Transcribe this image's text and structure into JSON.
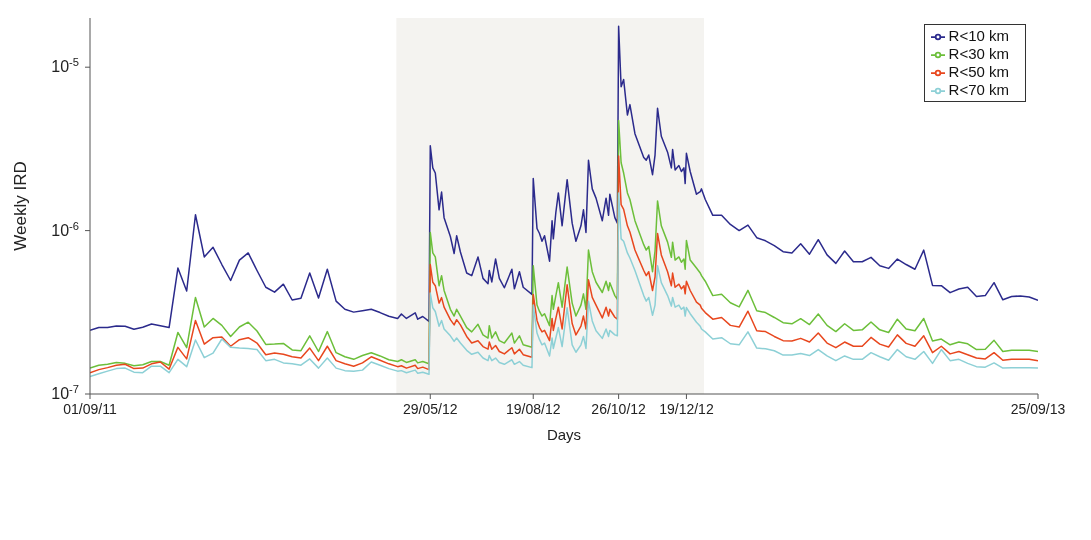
{
  "chart_data": {
    "type": "line",
    "xlabel": "Days",
    "ylabel": "Weekly IRD",
    "log": "y",
    "legend": "top right",
    "xlim": [
      "2011-09-01",
      "2013-09-25"
    ],
    "xticks": [
      {
        "value": "2011-09-01",
        "label": "01/09/11"
      },
      {
        "value": "2012-05-29",
        "label": "29/05/12"
      },
      {
        "value": "2012-08-19",
        "label": "19/08/12"
      },
      {
        "value": "2012-10-26",
        "label": "26/10/12"
      },
      {
        "value": "2012-12-19",
        "label": "19/12/12"
      },
      {
        "value": "2013-09-25",
        "label": "25/09/13"
      }
    ],
    "ylim": [
      1e-07,
      2e-05
    ],
    "yticks": [
      {
        "value": 1e-07,
        "label": "10$^{-7}$"
      },
      {
        "value": 1e-06,
        "label": "10$^{-6}$"
      },
      {
        "value": 1e-05,
        "label": "10$^{-5}$"
      }
    ],
    "bands": [
      {
        "axis": "x",
        "from": "2012-05-02",
        "to": "2013-01-02",
        "color": "#f4f3f0"
      }
    ],
    "x": [
      "2011-09-01",
      "2011-09-08",
      "2011-09-15",
      "2011-09-22",
      "2011-09-29",
      "2011-10-06",
      "2011-10-13",
      "2011-10-20",
      "2011-10-27",
      "2011-11-03",
      "2011-11-10",
      "2011-11-17",
      "2011-11-24",
      "2011-12-01",
      "2011-12-08",
      "2011-12-15",
      "2011-12-22",
      "2011-12-29",
      "2012-01-05",
      "2012-01-12",
      "2012-01-19",
      "2012-01-26",
      "2012-02-02",
      "2012-02-09",
      "2012-02-16",
      "2012-02-23",
      "2012-03-01",
      "2012-03-08",
      "2012-03-15",
      "2012-03-22",
      "2012-03-29",
      "2012-04-05",
      "2012-04-12",
      "2012-04-19",
      "2012-04-26",
      "2012-05-03",
      "2012-05-06",
      "2012-05-10",
      "2012-05-17",
      "2012-05-19",
      "2012-05-23",
      "2012-05-28",
      "2012-05-29",
      "2012-05-31",
      "2012-06-02",
      "2012-06-05",
      "2012-06-07",
      "2012-06-09",
      "2012-06-14",
      "2012-06-17",
      "2012-06-19",
      "2012-06-22",
      "2012-06-27",
      "2012-07-01",
      "2012-07-06",
      "2012-07-10",
      "2012-07-14",
      "2012-07-15",
      "2012-07-17",
      "2012-07-20",
      "2012-07-23",
      "2012-07-27",
      "2012-08-02",
      "2012-08-04",
      "2012-08-08",
      "2012-08-11",
      "2012-08-18",
      "2012-08-19",
      "2012-08-22",
      "2012-08-24",
      "2012-08-26",
      "2012-08-28",
      "2012-09-01",
      "2012-09-03",
      "2012-09-04",
      "2012-09-06",
      "2012-09-08",
      "2012-09-11",
      "2012-09-15",
      "2012-09-19",
      "2012-09-22",
      "2012-09-26",
      "2012-09-28",
      "2012-09-30",
      "2012-10-02",
      "2012-10-05",
      "2012-10-08",
      "2012-10-13",
      "2012-10-16",
      "2012-10-18",
      "2012-10-19",
      "2012-10-23",
      "2012-10-25",
      "2012-10-26",
      "2012-10-28",
      "2012-10-30",
      "2012-11-02",
      "2012-11-04",
      "2012-11-08",
      "2012-11-15",
      "2012-11-17",
      "2012-11-19",
      "2012-11-22",
      "2012-11-24",
      "2012-11-26",
      "2012-11-29",
      "2012-12-04",
      "2012-12-07",
      "2012-12-08",
      "2012-12-10",
      "2012-12-13",
      "2012-12-15",
      "2012-12-17",
      "2012-12-18",
      "2012-12-19",
      "2012-12-22",
      "2012-12-27",
      "2012-12-30",
      "2012-12-31",
      "2013-01-03",
      "2013-01-09",
      "2013-01-16",
      "2013-01-23",
      "2013-01-30",
      "2013-02-06",
      "2013-02-13",
      "2013-02-20",
      "2013-02-27",
      "2013-03-06",
      "2013-03-13",
      "2013-03-20",
      "2013-03-27",
      "2013-04-03",
      "2013-04-10",
      "2013-04-17",
      "2013-04-24",
      "2013-05-01",
      "2013-05-08",
      "2013-05-15",
      "2013-05-22",
      "2013-05-29",
      "2013-06-05",
      "2013-06-12",
      "2013-06-19",
      "2013-06-26",
      "2013-07-03",
      "2013-07-10",
      "2013-07-17",
      "2013-07-24",
      "2013-07-31",
      "2013-08-07",
      "2013-08-14",
      "2013-08-21",
      "2013-08-28",
      "2013-09-04",
      "2013-09-11",
      "2013-09-18",
      "2013-09-25"
    ],
    "series": [
      {
        "name": "R<10 km",
        "color": "#2b2a8c",
        "values": [
          2.45e-07,
          2.55e-07,
          2.55e-07,
          2.61e-07,
          2.6e-07,
          2.49e-07,
          2.56e-07,
          2.68e-07,
          2.62e-07,
          2.55e-07,
          5.9e-07,
          4.27e-07,
          1.25e-06,
          6.9e-07,
          7.9e-07,
          6.2e-07,
          4.95e-07,
          6.6e-07,
          7.3e-07,
          5.7e-07,
          4.5e-07,
          4.2e-07,
          4.7e-07,
          3.76e-07,
          3.85e-07,
          5.5e-07,
          3.87e-07,
          5.8e-07,
          3.7e-07,
          3.3e-07,
          3.17e-07,
          3.23e-07,
          3.3e-07,
          3.15e-07,
          2.99e-07,
          2.9e-07,
          3.09e-07,
          2.9e-07,
          3.14e-07,
          2.87e-07,
          2.98e-07,
          2.78e-07,
          3.3e-06,
          2.42e-06,
          2.25e-06,
          1.34e-06,
          1.72e-06,
          1.2e-06,
          9.2e-07,
          7.24e-07,
          9.3e-07,
          7.4e-07,
          5.5e-07,
          5.3e-07,
          6.9e-07,
          5.1e-07,
          4.73e-07,
          5.7e-07,
          4.85e-07,
          6.7e-07,
          5.1e-07,
          4.47e-07,
          5.8e-07,
          4.4e-07,
          5.6e-07,
          4.5e-07,
          4.07e-07,
          2.08e-06,
          1.03e-06,
          9.6e-07,
          8.6e-07,
          9.3e-07,
          6.5e-07,
          1.15e-06,
          8.9e-07,
          1.29e-06,
          1.7e-06,
          1.07e-06,
          2.05e-06,
          1.11e-06,
          8.6e-07,
          1.07e-06,
          1.34e-06,
          9.75e-07,
          2.69e-06,
          1.8e-06,
          1.58e-06,
          1.15e-06,
          1.58e-06,
          1.24e-06,
          1.67e-06,
          1.2e-06,
          1.11e-06,
          1.78e-05,
          7.6e-06,
          8.4e-06,
          5.1e-06,
          5.9e-06,
          3.92e-06,
          2.8e-06,
          2.7e-06,
          2.9e-06,
          2.2e-06,
          2.9e-06,
          5.6e-06,
          3.78e-06,
          3.02e-06,
          2.42e-06,
          3.13e-06,
          2.35e-06,
          2.5e-06,
          2.3e-06,
          2.42e-06,
          1.94e-06,
          2.97e-06,
          2.3e-06,
          1.67e-06,
          1.73e-06,
          1.8e-06,
          1.55e-06,
          1.24e-06,
          1.24e-06,
          1.09e-06,
          1e-06,
          1.08e-06,
          9.05e-07,
          8.66e-07,
          8.1e-07,
          7.43e-07,
          7.3e-07,
          8.3e-07,
          7.17e-07,
          8.8e-07,
          7.1e-07,
          6.3e-07,
          7.5e-07,
          6.45e-07,
          6.45e-07,
          6.86e-07,
          6.1e-07,
          5.87e-07,
          6.7e-07,
          6.2e-07,
          5.8e-07,
          7.6e-07,
          4.62e-07,
          4.6e-07,
          4.17e-07,
          4.39e-07,
          4.5e-07,
          3.95e-07,
          4e-07,
          4.8e-07,
          3.77e-07,
          3.95e-07,
          3.98e-07,
          3.92e-07,
          3.74e-07
        ]
      },
      {
        "name": "R<30 km",
        "color": "#6cbf3a",
        "values": [
          1.44e-07,
          1.5e-07,
          1.52e-07,
          1.56e-07,
          1.54e-07,
          1.49e-07,
          1.51e-07,
          1.58e-07,
          1.58e-07,
          1.5e-07,
          2.38e-07,
          1.92e-07,
          3.9e-07,
          2.57e-07,
          2.9e-07,
          2.63e-07,
          2.25e-07,
          2.57e-07,
          2.75e-07,
          2.43e-07,
          2.01e-07,
          2.02e-07,
          2.04e-07,
          1.86e-07,
          1.84e-07,
          2.27e-07,
          1.82e-07,
          2.41e-07,
          1.79e-07,
          1.69e-07,
          1.63e-07,
          1.72e-07,
          1.79e-07,
          1.71e-07,
          1.62e-07,
          1.58e-07,
          1.62e-07,
          1.56e-07,
          1.62e-07,
          1.55e-07,
          1.58e-07,
          1.53e-07,
          9.75e-07,
          7.3e-07,
          6.9e-07,
          4.6e-07,
          5.3e-07,
          4.3e-07,
          3.3e-07,
          3e-07,
          3.3e-07,
          3e-07,
          2.55e-07,
          2.4e-07,
          2.67e-07,
          2.3e-07,
          2.2e-07,
          2.62e-07,
          2.2e-07,
          2.4e-07,
          2.12e-07,
          2.05e-07,
          2.36e-07,
          2.05e-07,
          2.27e-07,
          2e-07,
          1.93e-07,
          6.1e-07,
          3.5e-07,
          3.2e-07,
          3e-07,
          3.1e-07,
          2.62e-07,
          4e-07,
          3.3e-07,
          4e-07,
          4.8e-07,
          3.4e-07,
          5.98e-07,
          3.6e-07,
          3e-07,
          3.5e-07,
          4.1e-07,
          3.3e-07,
          7.6e-07,
          5.6e-07,
          4.83e-07,
          4.18e-07,
          4.9e-07,
          4.3e-07,
          4.8e-07,
          4e-07,
          3.8e-07,
          4.72e-06,
          2.6e-06,
          2.25e-06,
          1.7e-06,
          1.55e-06,
          1.15e-06,
          8.2e-07,
          7.6e-07,
          8e-07,
          5.6e-07,
          7.5e-07,
          1.52e-06,
          1.07e-06,
          8.5e-07,
          6.86e-07,
          8.5e-07,
          6.6e-07,
          6.9e-07,
          6.4e-07,
          6.7e-07,
          5.8e-07,
          8.7e-07,
          6.6e-07,
          5.9e-07,
          5.5e-07,
          5.3e-07,
          4.9e-07,
          4e-07,
          4.08e-07,
          3.62e-07,
          3.41e-07,
          4.31e-07,
          3.23e-07,
          3.15e-07,
          2.94e-07,
          2.73e-07,
          2.69e-07,
          2.89e-07,
          2.66e-07,
          3.09e-07,
          2.63e-07,
          2.41e-07,
          2.69e-07,
          2.45e-07,
          2.47e-07,
          2.76e-07,
          2.47e-07,
          2.38e-07,
          2.87e-07,
          2.5e-07,
          2.44e-07,
          2.9e-07,
          2.11e-07,
          2.17e-07,
          2e-07,
          2.08e-07,
          2.03e-07,
          1.87e-07,
          1.88e-07,
          2.13e-07,
          1.82e-07,
          1.85e-07,
          1.85e-07,
          1.85e-07,
          1.82e-07
        ]
      },
      {
        "name": "R<50 km",
        "color": "#e8471e",
        "values": [
          1.35e-07,
          1.41e-07,
          1.45e-07,
          1.5e-07,
          1.52e-07,
          1.43e-07,
          1.44e-07,
          1.53e-07,
          1.57e-07,
          1.42e-07,
          1.93e-07,
          1.64e-07,
          2.82e-07,
          2.02e-07,
          2.21e-07,
          2.23e-07,
          1.96e-07,
          2.15e-07,
          2.21e-07,
          2.05e-07,
          1.74e-07,
          1.78e-07,
          1.75e-07,
          1.69e-07,
          1.66e-07,
          1.91e-07,
          1.6e-07,
          1.96e-07,
          1.6e-07,
          1.53e-07,
          1.48e-07,
          1.55e-07,
          1.69e-07,
          1.61e-07,
          1.53e-07,
          1.47e-07,
          1.49e-07,
          1.44e-07,
          1.5e-07,
          1.43e-07,
          1.46e-07,
          1.41e-07,
          6.2e-07,
          4.83e-07,
          4.6e-07,
          3.6e-07,
          3.89e-07,
          3.4e-07,
          2.85e-07,
          2.65e-07,
          2.85e-07,
          2.65e-07,
          2.25e-07,
          2.05e-07,
          2.12e-07,
          1.95e-07,
          1.88e-07,
          2.08e-07,
          1.88e-07,
          1.98e-07,
          1.82e-07,
          1.76e-07,
          1.92e-07,
          1.76e-07,
          1.88e-07,
          1.74e-07,
          1.68e-07,
          4.07e-07,
          2.82e-07,
          2.55e-07,
          2.4e-07,
          2.45e-07,
          2.12e-07,
          2.9e-07,
          2.45e-07,
          2.9e-07,
          3.4e-07,
          2.5e-07,
          4.66e-07,
          2.7e-07,
          2.3e-07,
          2.6e-07,
          3e-07,
          2.5e-07,
          5e-07,
          3.9e-07,
          3.5e-07,
          2.92e-07,
          3.4e-07,
          3e-07,
          3.3e-07,
          2.95e-07,
          2.87e-07,
          2.86e-06,
          1.44e-06,
          1.35e-06,
          1.07e-06,
          9.8e-07,
          7.6e-07,
          5.7e-07,
          5.3e-07,
          5.6e-07,
          4.3e-07,
          5.2e-07,
          9.6e-07,
          7.1e-07,
          5.6e-07,
          4.6e-07,
          5.5e-07,
          4.5e-07,
          4.7e-07,
          4.4e-07,
          4.6e-07,
          4.1e-07,
          4.9e-07,
          4.3e-07,
          3.65e-07,
          3.5e-07,
          3.35e-07,
          3.15e-07,
          2.87e-07,
          2.94e-07,
          2.63e-07,
          2.57e-07,
          3.21e-07,
          2.44e-07,
          2.41e-07,
          2.25e-07,
          2.12e-07,
          2.11e-07,
          2.19e-07,
          2.08e-07,
          2.36e-07,
          2.05e-07,
          1.92e-07,
          2.08e-07,
          1.96e-07,
          1.96e-07,
          2.22e-07,
          2.02e-07,
          1.94e-07,
          2.3e-07,
          2.04e-07,
          1.96e-07,
          2.27e-07,
          1.79e-07,
          1.96e-07,
          1.76e-07,
          1.82e-07,
          1.74e-07,
          1.66e-07,
          1.64e-07,
          1.79e-07,
          1.61e-07,
          1.63e-07,
          1.63e-07,
          1.63e-07,
          1.6e-07
        ]
      },
      {
        "name": "R<70 km",
        "color": "#8dd0d6",
        "values": [
          1.28e-07,
          1.33e-07,
          1.38e-07,
          1.43e-07,
          1.44e-07,
          1.36e-07,
          1.35e-07,
          1.48e-07,
          1.48e-07,
          1.35e-07,
          1.63e-07,
          1.47e-07,
          2.14e-07,
          1.67e-07,
          1.78e-07,
          2.17e-07,
          1.93e-07,
          1.91e-07,
          1.9e-07,
          1.87e-07,
          1.6e-07,
          1.63e-07,
          1.55e-07,
          1.53e-07,
          1.5e-07,
          1.64e-07,
          1.44e-07,
          1.66e-07,
          1.44e-07,
          1.39e-07,
          1.38e-07,
          1.4e-07,
          1.57e-07,
          1.5e-07,
          1.43e-07,
          1.38e-07,
          1.39e-07,
          1.35e-07,
          1.4e-07,
          1.34e-07,
          1.36e-07,
          1.32e-07,
          4.15e-07,
          3.37e-07,
          3.2e-07,
          2.6e-07,
          2.82e-07,
          2.5e-07,
          2.27e-07,
          2.1e-07,
          2.2e-07,
          2.05e-07,
          1.85e-07,
          1.75e-07,
          1.8e-07,
          1.66e-07,
          1.6e-07,
          1.72e-07,
          1.6e-07,
          1.66e-07,
          1.56e-07,
          1.52e-07,
          1.62e-07,
          1.52e-07,
          1.58e-07,
          1.5e-07,
          1.45e-07,
          3.5e-07,
          2.36e-07,
          2.15e-07,
          2e-07,
          2.05e-07,
          1.71e-07,
          2.2e-07,
          1.9e-07,
          2.2e-07,
          2.55e-07,
          1.95e-07,
          3.37e-07,
          2e-07,
          1.8e-07,
          2e-07,
          2.25e-07,
          1.9e-07,
          3.69e-07,
          2.8e-07,
          2.44e-07,
          2.19e-07,
          2.5e-07,
          2.25e-07,
          2.45e-07,
          2.3e-07,
          2.27e-07,
          1.7e-06,
          8.9e-07,
          8.6e-07,
          7.3e-07,
          6.8e-07,
          5.7e-07,
          4e-07,
          3.7e-07,
          3.9e-07,
          3.03e-07,
          3.5e-07,
          6.1e-07,
          4.8e-07,
          4e-07,
          3.45e-07,
          3.9e-07,
          3.4e-07,
          3.5e-07,
          3.3e-07,
          3.4e-07,
          3e-07,
          3.38e-07,
          3.1e-07,
          2.75e-07,
          2.6e-07,
          2.5e-07,
          2.4e-07,
          2.17e-07,
          2.21e-07,
          2.03e-07,
          2e-07,
          2.4e-07,
          1.91e-07,
          1.89e-07,
          1.84e-07,
          1.73e-07,
          1.73e-07,
          1.77e-07,
          1.72e-07,
          1.87e-07,
          1.71e-07,
          1.6e-07,
          1.71e-07,
          1.63e-07,
          1.63e-07,
          1.79e-07,
          1.69e-07,
          1.61e-07,
          1.87e-07,
          1.69e-07,
          1.63e-07,
          1.82e-07,
          1.54e-07,
          1.87e-07,
          1.6e-07,
          1.63e-07,
          1.54e-07,
          1.47e-07,
          1.46e-07,
          1.55e-07,
          1.44e-07,
          1.45e-07,
          1.45e-07,
          1.45e-07,
          1.44e-07
        ]
      }
    ]
  }
}
